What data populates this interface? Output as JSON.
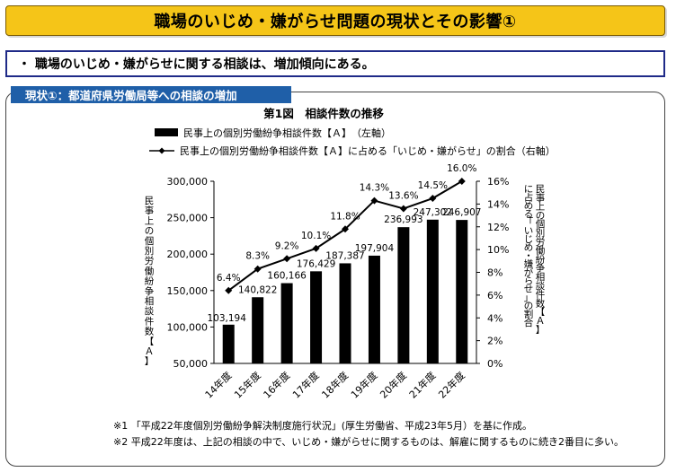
{
  "header": {
    "title": "職場のいじめ・嫌がらせ問題の現状とその影響①",
    "summary": "・ 職場のいじめ・嫌がらせに関する相談は、増加傾向にある。",
    "section_label": "現状①：都道府県労働局等への相談の増加"
  },
  "chart_data": {
    "type": "bar",
    "title": "第1図　相談件数の推移",
    "categories": [
      "14年度",
      "15年度",
      "16年度",
      "17年度",
      "18年度",
      "19年度",
      "20年度",
      "21年度",
      "22年度"
    ],
    "series": [
      {
        "name": "民事上の個別労働紛争相談件数【Ａ】　（左軸）",
        "type": "bar",
        "axis": "left",
        "values": [
          103194,
          140822,
          160166,
          176429,
          187387,
          197904,
          236993,
          247302,
          246907
        ],
        "labels": [
          "103,194",
          "140,822",
          "160,166",
          "176,429",
          "187,387",
          "197,904",
          "236,993",
          "247,302",
          "246,907"
        ]
      },
      {
        "name": "民事上の個別労働紛争相談件数【Ａ】に占める「いじめ・嫌がらせ」の割合（右軸）",
        "type": "line",
        "axis": "right",
        "values": [
          6.4,
          8.3,
          9.2,
          10.1,
          11.8,
          14.3,
          13.6,
          14.5,
          16.0
        ],
        "labels": [
          "6.4%",
          "8.3%",
          "9.2%",
          "10.1%",
          "11.8%",
          "14.3%",
          "13.6%",
          "14.5%",
          "16.0%"
        ]
      }
    ],
    "ylabel_left": "民事上の個別労働紛争相談件数【Ａ】",
    "ylabel_right": "に占める「いじめ・嫌がらせ」の割合",
    "ylim_left": [
      50000,
      300000
    ],
    "yticks_left": [
      "50,000",
      "100,000",
      "150,000",
      "200,000",
      "250,000",
      "300,000"
    ],
    "ylim_right": [
      0,
      16
    ],
    "yticks_right": [
      "0%",
      "2%",
      "4%",
      "6%",
      "8%",
      "10%",
      "12%",
      "14%",
      "16%"
    ],
    "grid": false,
    "legend": "top"
  },
  "notes": [
    "※1 「平成22年度個別労働紛争解決制度施行状況」(厚生労働省、平成23年5月）を基に作成。",
    "※2 平成22年度は、上記の相談の中で、いじめ・嫌がらせに関するものは、解雇に関するものに続き2番目に多い。"
  ],
  "colors": {
    "title_bg": "#f5c518",
    "summary_border": "#1f2a88",
    "section_bg": "#1f5fa8",
    "bar": "#000000",
    "line": "#000000"
  }
}
